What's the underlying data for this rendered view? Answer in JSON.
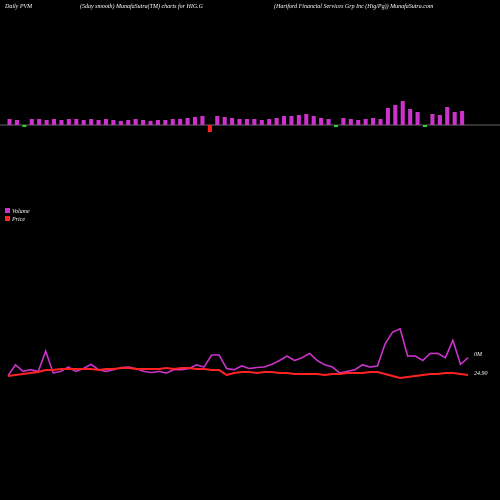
{
  "header": {
    "left": "Daily PVM",
    "center": "(5day smooth) MunafaSutra(TM) charts for HIG.G",
    "right": "(Hartford Financial Services Grp Inc (Hig/Pg)) MunafaSutra.com"
  },
  "chart_data": [
    {
      "type": "bar",
      "values": [
        6,
        5,
        -2,
        6,
        6,
        5,
        6,
        5,
        6,
        6,
        5,
        6,
        5,
        6,
        5,
        4,
        5,
        6,
        5,
        4,
        5,
        5,
        6,
        6,
        7,
        8,
        9,
        -7,
        9,
        8,
        7,
        6,
        6,
        6,
        5,
        6,
        7,
        9,
        9,
        10,
        11,
        9,
        7,
        6,
        -2,
        7,
        6,
        5,
        6,
        7,
        6,
        17,
        20,
        24,
        16,
        13,
        -2,
        11,
        10,
        18,
        13,
        14
      ],
      "colors": [
        "#cc33cc",
        "#cc33cc",
        "#33cc33",
        "#cc33cc",
        "#cc33cc",
        "#cc33cc",
        "#cc33cc",
        "#cc33cc",
        "#cc33cc",
        "#cc33cc",
        "#cc33cc",
        "#cc33cc",
        "#cc33cc",
        "#cc33cc",
        "#cc33cc",
        "#cc33cc",
        "#cc33cc",
        "#cc33cc",
        "#cc33cc",
        "#cc33cc",
        "#cc33cc",
        "#cc33cc",
        "#cc33cc",
        "#cc33cc",
        "#cc33cc",
        "#cc33cc",
        "#cc33cc",
        "#ff2222",
        "#cc33cc",
        "#cc33cc",
        "#cc33cc",
        "#cc33cc",
        "#cc33cc",
        "#cc33cc",
        "#cc33cc",
        "#cc33cc",
        "#cc33cc",
        "#cc33cc",
        "#cc33cc",
        "#cc33cc",
        "#cc33cc",
        "#cc33cc",
        "#cc33cc",
        "#cc33cc",
        "#33cc33",
        "#cc33cc",
        "#cc33cc",
        "#cc33cc",
        "#cc33cc",
        "#cc33cc",
        "#cc33cc",
        "#cc33cc",
        "#cc33cc",
        "#cc33cc",
        "#cc33cc",
        "#cc33cc",
        "#33cc33",
        "#cc33cc",
        "#cc33cc",
        "#cc33cc",
        "#cc33cc",
        "#cc33cc"
      ],
      "ylim": [
        -10,
        30
      ]
    },
    {
      "type": "line",
      "series": [
        {
          "name": "Volume",
          "color": "#cc33cc",
          "values": [
            1.7,
            3.7,
            2.5,
            2.8,
            2.5,
            6.2,
            2.2,
            2.5,
            3.3,
            2.5,
            3.0,
            3.8,
            2.8,
            2.5,
            2.8,
            3.2,
            3.3,
            3.0,
            2.5,
            2.3,
            2.5,
            2.2,
            2.8,
            2.8,
            3.0,
            3.7,
            3.3,
            5.5,
            5.5,
            3.0,
            2.8,
            3.5,
            3.0,
            3.2,
            3.3,
            3.8,
            4.5,
            5.3,
            4.5,
            5.0,
            5.8,
            4.5,
            3.7,
            3.3,
            2.2,
            2.5,
            2.8,
            3.7,
            3.3,
            3.5,
            7.5,
            9.7,
            10.3,
            5.3,
            5.3,
            4.5,
            5.8,
            5.8,
            5.0,
            8.2,
            3.8,
            5.0
          ]
        },
        {
          "name": "Price",
          "color": "#ff2222",
          "axis": "y2",
          "values": [
            24.89,
            24.9,
            24.91,
            24.92,
            24.93,
            24.95,
            24.95,
            24.96,
            24.96,
            24.96,
            24.96,
            24.96,
            24.95,
            24.96,
            24.96,
            24.97,
            24.97,
            24.96,
            24.96,
            24.96,
            24.96,
            24.97,
            24.96,
            24.97,
            24.97,
            24.96,
            24.96,
            24.95,
            24.95,
            24.9,
            24.92,
            24.93,
            24.93,
            24.92,
            24.93,
            24.93,
            24.92,
            24.92,
            24.91,
            24.91,
            24.91,
            24.91,
            24.9,
            24.91,
            24.91,
            24.92,
            24.92,
            24.92,
            24.93,
            24.93,
            24.91,
            24.89,
            24.87,
            24.88,
            24.89,
            24.9,
            24.91,
            24.91,
            24.92,
            24.92,
            24.91,
            24.9
          ]
        }
      ],
      "ylim": [
        0,
        11
      ],
      "y2lim": [
        24.8,
        25.4
      ],
      "annotations": [
        "0M",
        "24.90"
      ]
    }
  ]
}
